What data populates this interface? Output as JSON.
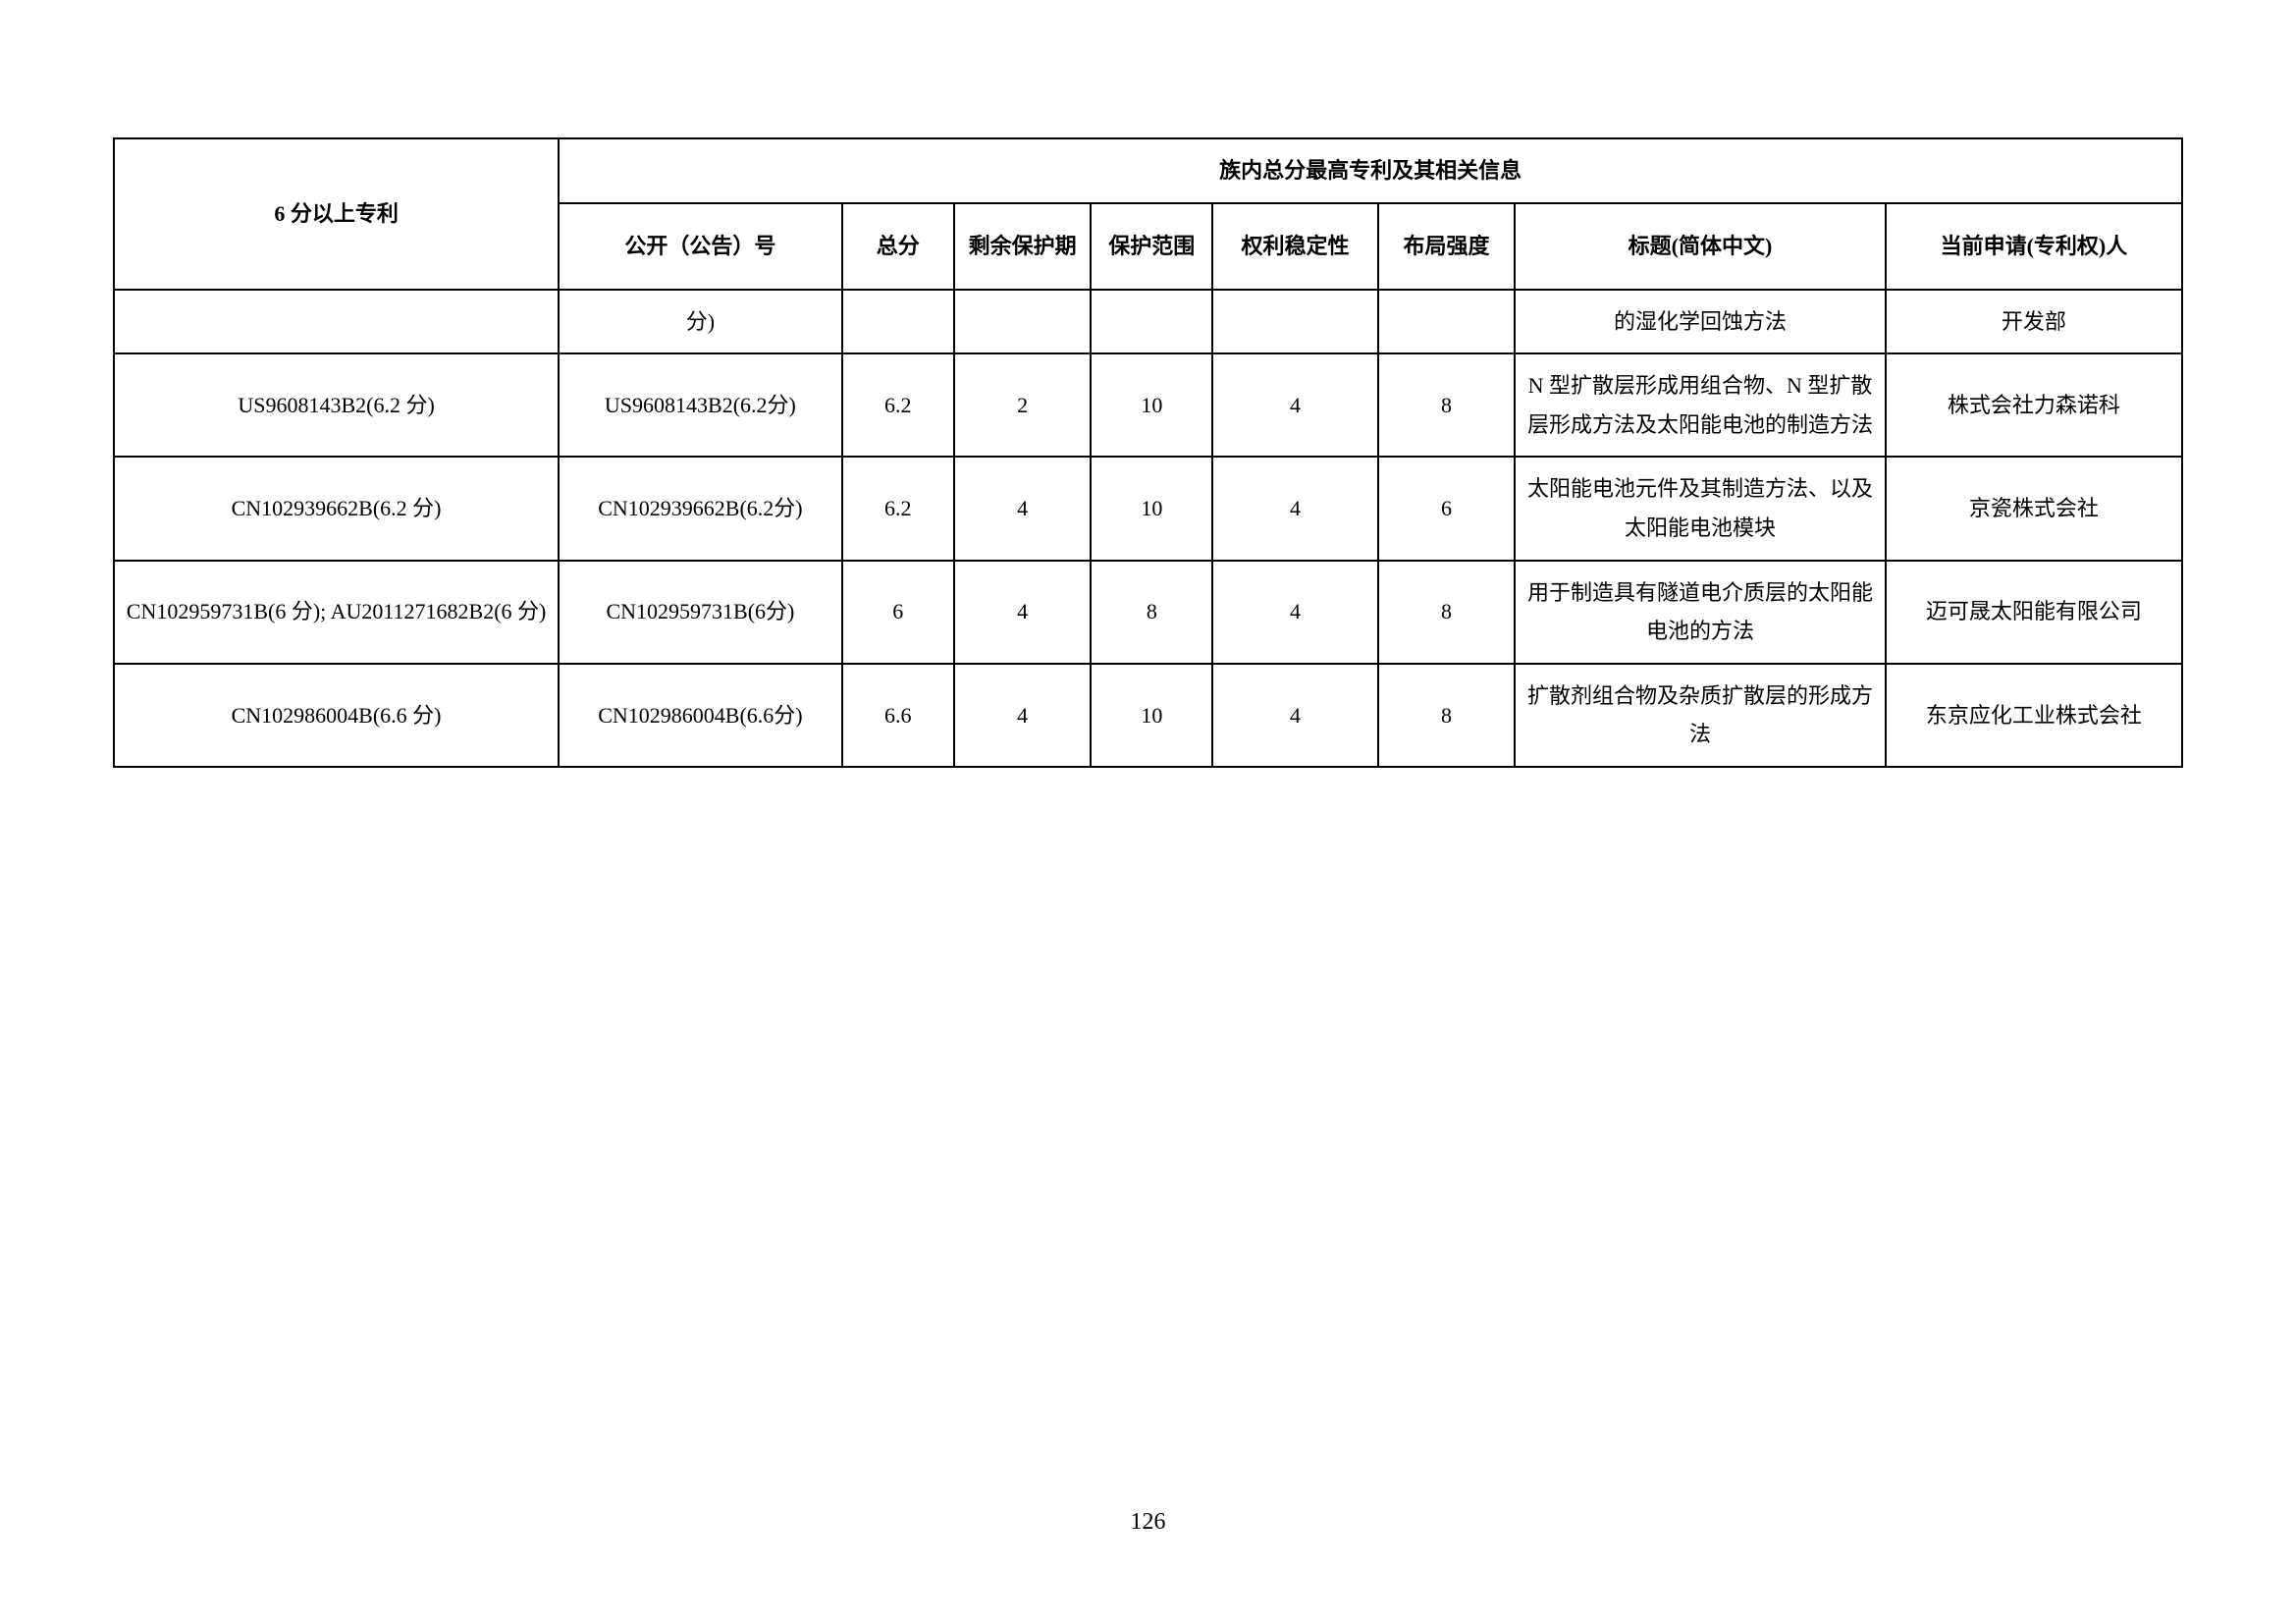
{
  "table": {
    "header_main_left": "6 分以上专利",
    "header_main_right": "族内总分最高专利及其相关信息",
    "columns": {
      "pub_num": "公开（公告）号",
      "total_score": "总分",
      "remain_period": "剩余保护期",
      "protect_scope": "保护范围",
      "right_stability": "权利稳定性",
      "layout_strength": "布局强度",
      "title_cn": "标题(简体中文)",
      "applicant": "当前申请(专利权)人"
    },
    "rows": [
      {
        "patent_6": "",
        "pub_num": "分)",
        "total_score": "",
        "remain_period": "",
        "protect_scope": "",
        "right_stability": "",
        "layout_strength": "",
        "title_cn": "的湿化学回蚀方法",
        "applicant": "开发部"
      },
      {
        "patent_6": "US9608143B2(6.2 分)",
        "pub_num": "US9608143B2(6.2分)",
        "total_score": "6.2",
        "remain_period": "2",
        "protect_scope": "10",
        "right_stability": "4",
        "layout_strength": "8",
        "title_cn": "N 型扩散层形成用组合物、N 型扩散层形成方法及太阳能电池的制造方法",
        "applicant": "株式会社力森诺科"
      },
      {
        "patent_6": "CN102939662B(6.2 分)",
        "pub_num": "CN102939662B(6.2分)",
        "total_score": "6.2",
        "remain_period": "4",
        "protect_scope": "10",
        "right_stability": "4",
        "layout_strength": "6",
        "title_cn": "太阳能电池元件及其制造方法、以及太阳能电池模块",
        "applicant": "京瓷株式会社"
      },
      {
        "patent_6": "CN102959731B(6 分); AU2011271682B2(6 分)",
        "pub_num": "CN102959731B(6分)",
        "total_score": "6",
        "remain_period": "4",
        "protect_scope": "8",
        "right_stability": "4",
        "layout_strength": "8",
        "title_cn": "用于制造具有隧道电介质层的太阳能电池的方法",
        "applicant": "迈可晟太阳能有限公司"
      },
      {
        "patent_6": "CN102986004B(6.6 分)",
        "pub_num": "CN102986004B(6.6分)",
        "total_score": "6.6",
        "remain_period": "4",
        "protect_scope": "10",
        "right_stability": "4",
        "layout_strength": "8",
        "title_cn": "扩散剂组合物及杂质扩散层的形成方法",
        "applicant": "东京应化工业株式会社"
      }
    ]
  },
  "page_number": "126",
  "styling": {
    "background_color": "#ffffff",
    "border_color": "#000000",
    "border_width": 2,
    "font_family": "SimSun",
    "header_font_weight": "bold",
    "cell_font_size": 22,
    "text_align": "center"
  }
}
